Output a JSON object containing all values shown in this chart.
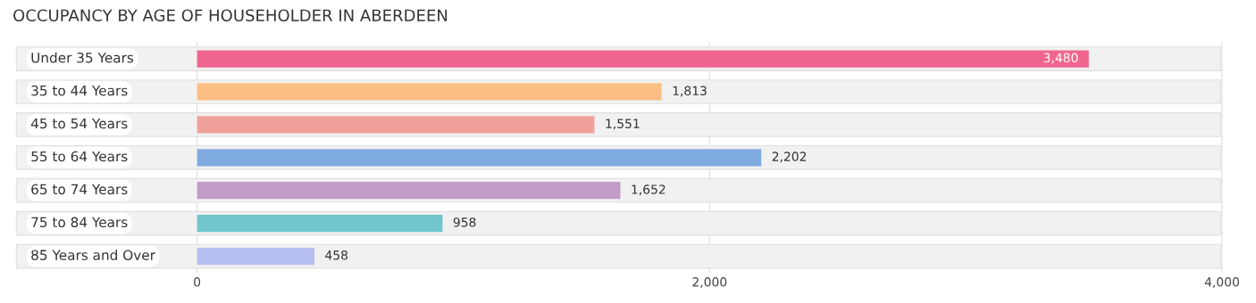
{
  "chart_data": {
    "type": "bar",
    "orientation": "horizontal",
    "title": "OCCUPANCY BY AGE OF HOUSEHOLDER IN ABERDEEN",
    "categories": [
      "Under 35 Years",
      "35 to 44 Years",
      "45 to 54 Years",
      "55 to 64 Years",
      "65 to 74 Years",
      "75 to 84 Years",
      "85 Years and Over"
    ],
    "values": [
      3480,
      1813,
      1551,
      2202,
      1652,
      958,
      458
    ],
    "colors": [
      "#f0668f",
      "#fbbf83",
      "#f0a19c",
      "#7fabe1",
      "#c29bc9",
      "#70c6cc",
      "#b7bff0"
    ],
    "xlim": [
      -720,
      4010
    ],
    "xticks": [
      {
        "value": 0,
        "label": "0"
      },
      {
        "value": 2000,
        "label": "2,000"
      },
      {
        "value": 4000,
        "label": "4,000"
      }
    ],
    "value_labels": [
      "3,480",
      "1,813",
      "1,551",
      "2,202",
      "1,652",
      "958",
      "458"
    ],
    "grid": "x",
    "legend": false
  }
}
